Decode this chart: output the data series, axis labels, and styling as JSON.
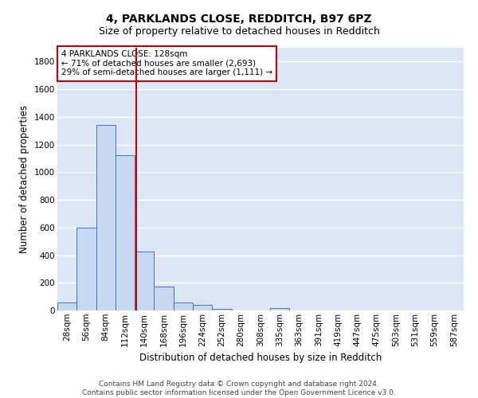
{
  "title": "4, PARKLANDS CLOSE, REDDITCH, B97 6PZ",
  "subtitle": "Size of property relative to detached houses in Redditch",
  "xlabel": "Distribution of detached houses by size in Redditch",
  "ylabel": "Number of detached properties",
  "categories": [
    "28sqm",
    "56sqm",
    "84sqm",
    "112sqm",
    "140sqm",
    "168sqm",
    "196sqm",
    "224sqm",
    "252sqm",
    "280sqm",
    "308sqm",
    "335sqm",
    "363sqm",
    "391sqm",
    "419sqm",
    "447sqm",
    "475sqm",
    "503sqm",
    "531sqm",
    "559sqm",
    "587sqm"
  ],
  "values": [
    55,
    600,
    1340,
    1120,
    425,
    170,
    60,
    38,
    10,
    0,
    0,
    20,
    0,
    0,
    0,
    0,
    0,
    0,
    0,
    0,
    0
  ],
  "bar_color": "#c6d9f1",
  "bar_edge_color": "#4472c4",
  "ylim": [
    0,
    1900
  ],
  "yticks": [
    0,
    200,
    400,
    600,
    800,
    1000,
    1200,
    1400,
    1600,
    1800
  ],
  "property_line_label": "4 PARKLANDS CLOSE: 128sqm",
  "annotation_line1": "← 71% of detached houses are smaller (2,693)",
  "annotation_line2": "29% of semi-detached houses are larger (1,111) →",
  "annotation_box_color": "#ffffff",
  "annotation_box_edge": "#cc0000",
  "vline_color": "#cc0000",
  "background_color": "#dce6f5",
  "grid_color": "#ffffff",
  "footer": "Contains HM Land Registry data © Crown copyright and database right 2024.\nContains public sector information licensed under the Open Government Licence v3.0.",
  "title_fontsize": 10,
  "subtitle_fontsize": 9,
  "axis_label_fontsize": 8.5,
  "tick_fontsize": 7.5,
  "footer_fontsize": 6.5,
  "annotation_fontsize": 7.5
}
